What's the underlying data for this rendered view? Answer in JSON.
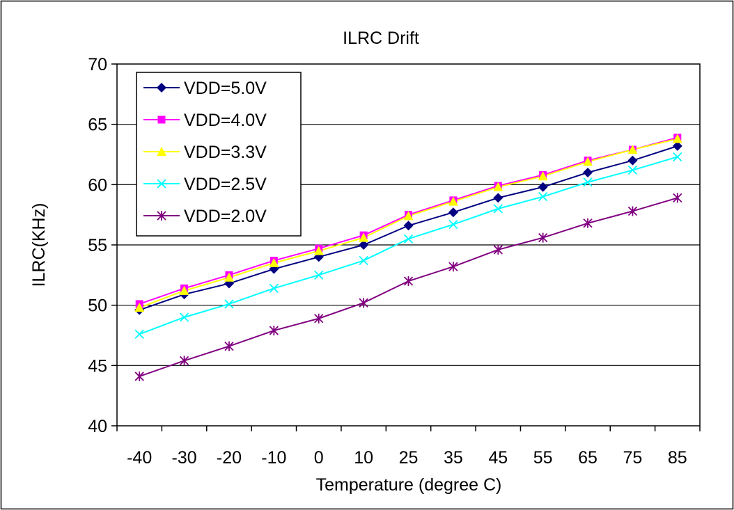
{
  "chart_data": {
    "type": "line",
    "title": "ILRC Drift",
    "xlabel": "Temperature (degree C)",
    "ylabel": "ILRC(KHz)",
    "categories": [
      "-40",
      "-30",
      "-20",
      "-10",
      "0",
      "10",
      "25",
      "35",
      "45",
      "55",
      "65",
      "75",
      "85"
    ],
    "ylim": [
      40,
      70
    ],
    "yticks": [
      40,
      45,
      50,
      55,
      60,
      65,
      70
    ],
    "grid": "horizontal",
    "legend_position": "top-left",
    "series": [
      {
        "name": "VDD=5.0V",
        "color": "#000080",
        "marker": "diamond",
        "values": [
          49.6,
          50.9,
          51.8,
          53.0,
          54.0,
          55.0,
          56.6,
          57.7,
          58.9,
          59.8,
          61.0,
          62.0,
          63.2
        ]
      },
      {
        "name": "VDD=4.0V",
        "color": "#ff00ff",
        "marker": "square",
        "values": [
          50.1,
          51.4,
          52.5,
          53.7,
          54.7,
          55.8,
          57.5,
          58.7,
          59.9,
          60.8,
          62.0,
          62.9,
          63.9
        ]
      },
      {
        "name": "VDD=3.3V",
        "color": "#ffff00",
        "marker": "triangle",
        "values": [
          49.8,
          51.2,
          52.3,
          53.5,
          54.5,
          55.6,
          57.4,
          58.6,
          59.8,
          60.7,
          61.9,
          62.9,
          63.8
        ]
      },
      {
        "name": "VDD=2.5V",
        "color": "#00ffff",
        "marker": "x",
        "values": [
          47.6,
          49.0,
          50.1,
          51.4,
          52.5,
          53.7,
          55.5,
          56.7,
          58.0,
          59.0,
          60.2,
          61.2,
          62.3
        ]
      },
      {
        "name": "VDD=2.0V",
        "color": "#800080",
        "marker": "star",
        "values": [
          44.1,
          45.4,
          46.6,
          47.9,
          48.9,
          50.2,
          52.0,
          53.2,
          54.6,
          55.6,
          56.8,
          57.8,
          58.9
        ]
      }
    ]
  }
}
